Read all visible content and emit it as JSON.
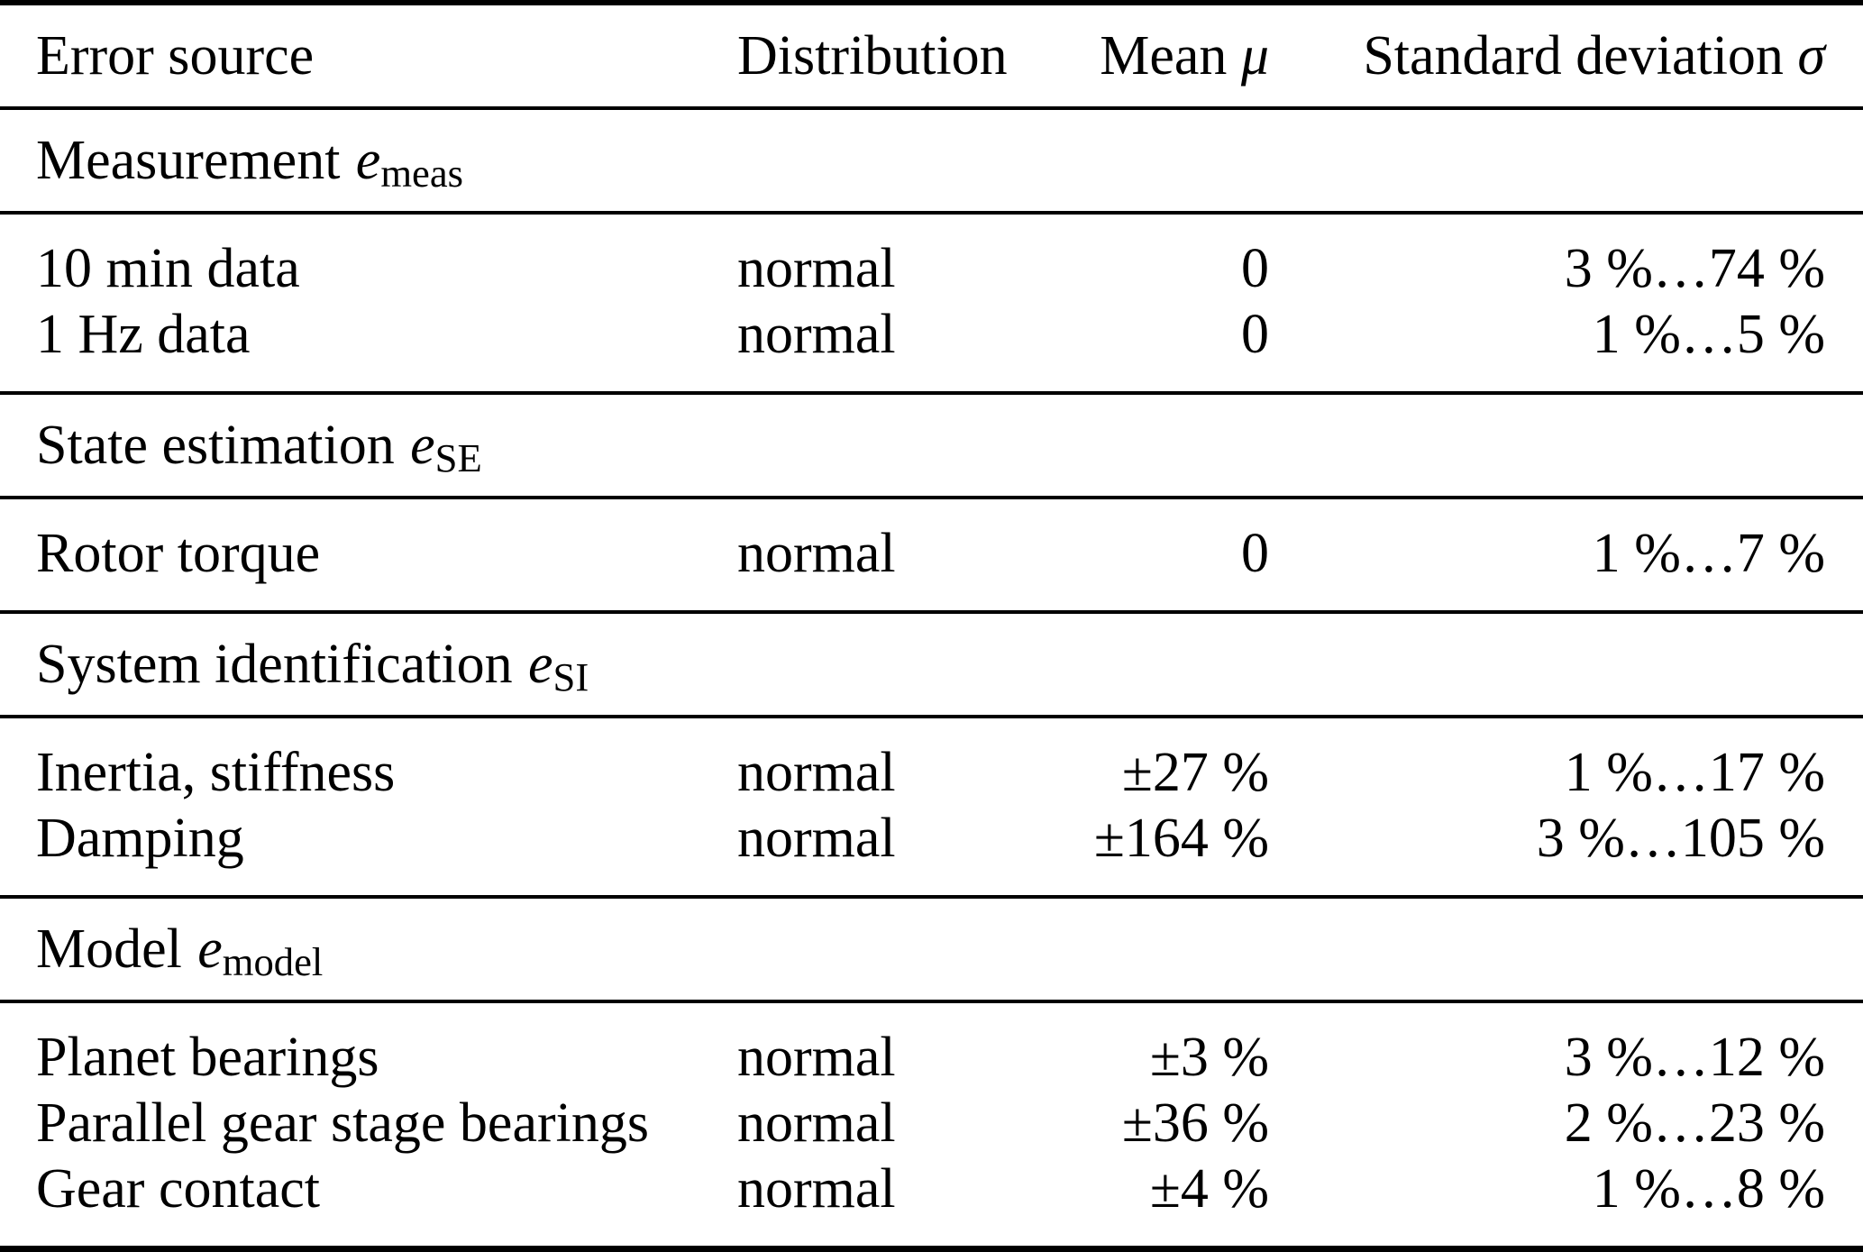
{
  "table": {
    "columns": [
      {
        "label": "Error source",
        "align": "left"
      },
      {
        "label": "Distribution",
        "align": "left"
      },
      {
        "label": "Mean",
        "symbol": "μ",
        "align": "right"
      },
      {
        "label": "Standard deviation",
        "symbol": "σ",
        "align": "right"
      }
    ],
    "sections": [
      {
        "title": {
          "text": "Measurement",
          "symbol": "e",
          "subscript": "meas"
        },
        "rows": [
          {
            "source": "10 min data",
            "distribution": "normal",
            "mean": "0",
            "std": "3 %…74 %"
          },
          {
            "source": "1 Hz data",
            "distribution": "normal",
            "mean": "0",
            "std": "1 %…5 %"
          }
        ]
      },
      {
        "title": {
          "text": "State estimation",
          "symbol": "e",
          "subscript": "SE"
        },
        "rows": [
          {
            "source": "Rotor torque",
            "distribution": "normal",
            "mean": "0",
            "std": "1 %…7 %"
          }
        ]
      },
      {
        "title": {
          "text": "System identification",
          "symbol": "e",
          "subscript": "SI"
        },
        "rows": [
          {
            "source": "Inertia, stiffness",
            "distribution": "normal",
            "mean": "±27 %",
            "std": "1 %…17 %"
          },
          {
            "source": "Damping",
            "distribution": "normal",
            "mean": "±164 %",
            "std": "3 %…105 %"
          }
        ]
      },
      {
        "title": {
          "text": "Model",
          "symbol": "e",
          "subscript": "model"
        },
        "rows": [
          {
            "source": "Planet bearings",
            "distribution": "normal",
            "mean": "±3 %",
            "std": "3 %…12 %"
          },
          {
            "source": "Parallel gear stage bearings",
            "distribution": "normal",
            "mean": "±36 %",
            "std": "2 %…23 %"
          },
          {
            "source": "Gear contact",
            "distribution": "normal",
            "mean": "±4 %",
            "std": "1 %…8 %"
          }
        ]
      }
    ]
  },
  "colors": {
    "text": "#000000",
    "background": "#ffffff",
    "rule": "#000000"
  }
}
